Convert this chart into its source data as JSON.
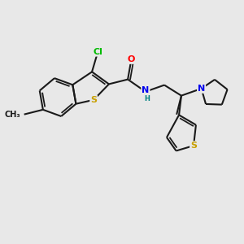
{
  "bg_color": "#e8e8e8",
  "bond_color": "#1a1a1a",
  "bond_width": 1.5,
  "atom_colors": {
    "Cl": "#00bb00",
    "S": "#c8a000",
    "O": "#ff0000",
    "N": "#0000ee",
    "H": "#008080",
    "C": "#1a1a1a",
    "Me": "#1a1a1a"
  },
  "font_size": 8.0,
  "fig_bg": "#e8e8e8"
}
